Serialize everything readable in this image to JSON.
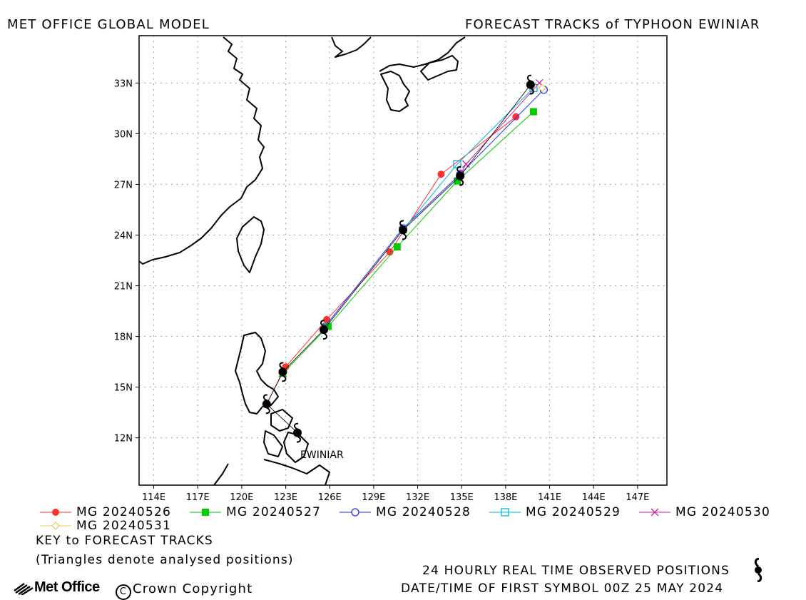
{
  "header": {
    "left_title": "MET OFFICE GLOBAL MODEL",
    "right_title": "FORECAST TRACKS of TYPHOON EWINIAR"
  },
  "map": {
    "lon_range": [
      113,
      149
    ],
    "lat_range": [
      9.2,
      35.8
    ],
    "lon_ticks": [
      114,
      117,
      120,
      123,
      126,
      129,
      132,
      135,
      138,
      141,
      144,
      147
    ],
    "lon_labels": [
      "114E",
      "117E",
      "120E",
      "123E",
      "126E",
      "129E",
      "132E",
      "135E",
      "138E",
      "141E",
      "144E",
      "147E"
    ],
    "lat_ticks": [
      12,
      15,
      18,
      21,
      24,
      27,
      30,
      33
    ],
    "lat_labels": [
      "12N",
      "15N",
      "18N",
      "21N",
      "24N",
      "27N",
      "30N",
      "33N"
    ],
    "grid": "dotted",
    "storm_label": "EWINIAR"
  },
  "chart_data": {
    "type": "scatter",
    "observed_track": {
      "points": [
        [
          123.8,
          12.3
        ],
        [
          121.7,
          14.0
        ],
        [
          122.8,
          15.9
        ],
        [
          125.6,
          18.4
        ],
        [
          131.0,
          24.3
        ],
        [
          134.9,
          27.5
        ],
        [
          139.7,
          32.9
        ]
      ],
      "color": "#000000"
    },
    "series": [
      {
        "name": "MG 20240526",
        "color": "#ff3030",
        "marker": "circle-filled",
        "points": [
          [
            121.7,
            14.0
          ],
          [
            123.0,
            16.2
          ],
          [
            125.8,
            19.0
          ],
          [
            130.1,
            23.0
          ],
          [
            133.6,
            27.6
          ],
          [
            138.7,
            31.0
          ]
        ]
      },
      {
        "name": "MG 20240527",
        "color": "#00cc00",
        "marker": "square-filled",
        "points": [
          [
            122.8,
            15.8
          ],
          [
            125.9,
            18.6
          ],
          [
            130.6,
            23.3
          ],
          [
            134.7,
            27.2
          ],
          [
            139.9,
            31.3
          ]
        ]
      },
      {
        "name": "MG 20240528",
        "color": "#2030ff",
        "marker": "circle-open",
        "points": [
          [
            125.6,
            18.5
          ],
          [
            131.0,
            24.4
          ],
          [
            134.9,
            27.6
          ],
          [
            140.6,
            32.6
          ]
        ]
      },
      {
        "name": "MG 20240529",
        "color": "#00b8d8",
        "marker": "square-open",
        "points": [
          [
            131.0,
            24.3
          ],
          [
            134.7,
            28.2
          ],
          [
            139.9,
            32.7
          ]
        ]
      },
      {
        "name": "MG 20240530",
        "color": "#d020a0",
        "marker": "x",
        "points": [
          [
            134.9,
            27.6
          ],
          [
            135.3,
            28.2
          ],
          [
            140.3,
            33.0
          ]
        ]
      },
      {
        "name": "MG 20240531",
        "color": "#e8d060",
        "marker": "diamond-open",
        "points": [
          [
            139.7,
            32.9
          ],
          [
            140.5,
            32.7
          ]
        ]
      }
    ]
  },
  "legend": {
    "key_title": "KEY to FORECAST TRACKS",
    "note": "(Triangles denote analysed positions)"
  },
  "footer": {
    "observed_label": "24 HOURLY REAL TIME OBSERVED POSITIONS",
    "first_symbol": "DATE/TIME OF FIRST SYMBOL 00Z 25 MAY 2024",
    "logo_text": "Met Office",
    "copyright": "Crown Copyright"
  }
}
